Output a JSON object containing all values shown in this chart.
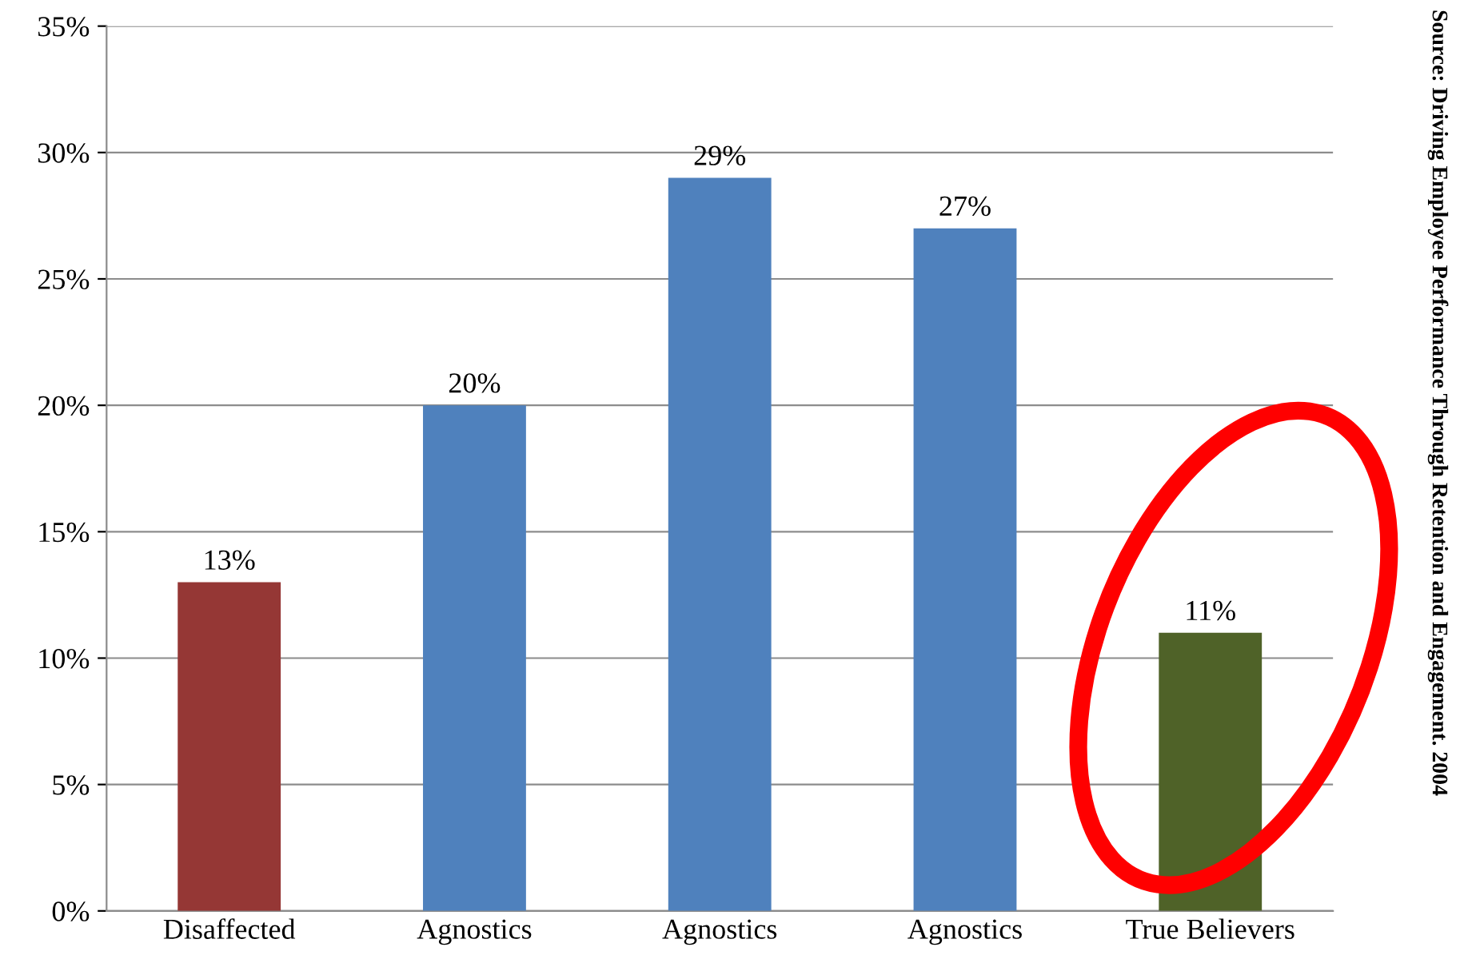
{
  "chart_data": {
    "type": "bar",
    "categories": [
      "Disaffected",
      "Agnostics",
      "Agnostics",
      "Agnostics",
      "True Believers"
    ],
    "values": [
      13,
      20,
      29,
      27,
      11
    ],
    "colors": [
      "#953735",
      "#4f81bd",
      "#4f81bd",
      "#4f81bd",
      "#4f6228"
    ],
    "value_labels": [
      "13%",
      "20%",
      "29%",
      "27%",
      "11%"
    ],
    "ylim": [
      0,
      35
    ],
    "yticks": [
      {
        "value": 0,
        "label": "0%"
      },
      {
        "value": 5,
        "label": "5%"
      },
      {
        "value": 10,
        "label": "10%"
      },
      {
        "value": 15,
        "label": "15%"
      },
      {
        "value": 20,
        "label": "20%"
      },
      {
        "value": 25,
        "label": "25%"
      },
      {
        "value": 30,
        "label": "30%"
      },
      {
        "value": 35,
        "label": "35%"
      }
    ],
    "grid": "y",
    "annotations": [
      "Source: Driving Employee Performance Through Retention and Engagement. 2004"
    ]
  }
}
